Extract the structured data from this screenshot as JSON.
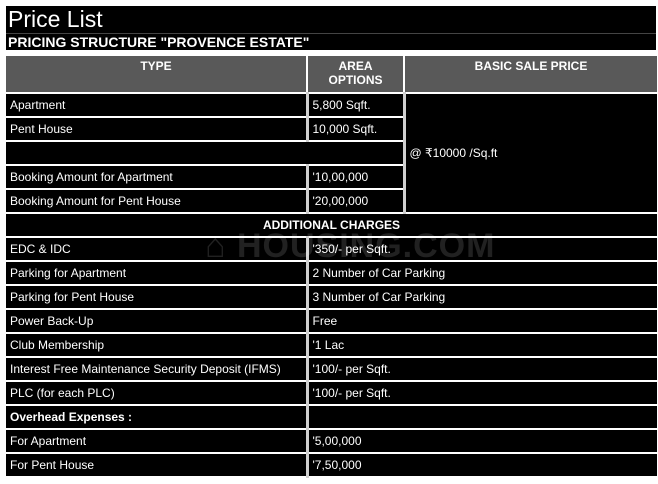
{
  "title": "Price List",
  "subtitle": "PRICING STRUCTURE \"PROVENCE ESTATE\"",
  "watermark": "HOUSING.COM",
  "headers": {
    "type": "TYPE",
    "area_line1": "AREA",
    "area_line2": "OPTIONS",
    "price": "BASIC SALE PRICE"
  },
  "basic_sale_price": "@ ₹10000 /Sq.ft",
  "top_rows": [
    {
      "type": "Apartment",
      "area": "5,800 Sqft."
    },
    {
      "type": "Pent House",
      "area": "10,000 Sqft."
    },
    {
      "type": "",
      "area": ""
    },
    {
      "type": "Booking Amount for Apartment",
      "area": "'10,00,000"
    },
    {
      "type": "Booking Amount for Pent House",
      "area": "'20,00,000"
    }
  ],
  "additional_title": "ADDITIONAL CHARGES",
  "charges": [
    {
      "label": "EDC & IDC",
      "value": "'350/- per Sqft."
    },
    {
      "label": "Parking for Apartment",
      "value": "2 Number of Car Parking"
    },
    {
      "label": "Parking for Pent House",
      "value": "3 Number of Car Parking"
    },
    {
      "label": "Power Back-Up",
      "value": "Free"
    },
    {
      "label": "Club Membership",
      "value": "'1 Lac"
    },
    {
      "label": "Interest Free Maintenance Security Deposit (IFMS)",
      "value": "'100/- per Sqft."
    },
    {
      "label": "PLC (for each PLC)",
      "value": "'100/- per Sqft."
    },
    {
      "label": "Overhead Expenses :",
      "value": ""
    },
    {
      "label": "For Apartment",
      "value": "'5,00,000"
    },
    {
      "label": "For Pent House",
      "value": "'7,50,000"
    }
  ]
}
